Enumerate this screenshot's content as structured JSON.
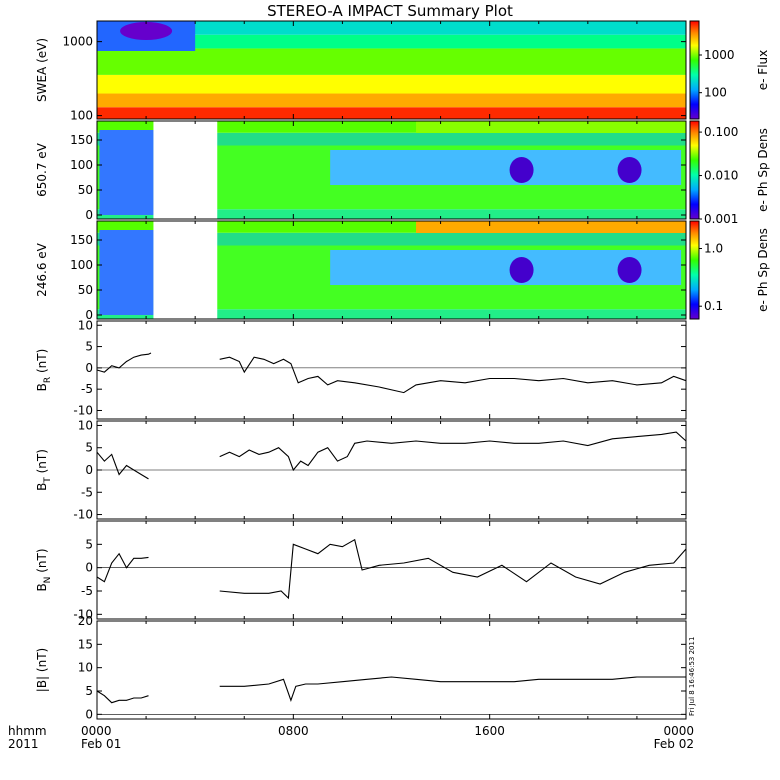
{
  "title": "STEREO-A IMPACT Summary Plot",
  "footer": {
    "left_top": "hhmm",
    "left_bottom": "2011",
    "ticks": [
      {
        "hour": 0,
        "time": "0000",
        "date": "Feb 01"
      },
      {
        "hour": 8,
        "time": "0800",
        "date": ""
      },
      {
        "hour": 16,
        "time": "1600",
        "date": ""
      },
      {
        "hour": 24,
        "time": "0000",
        "date": "Feb 02"
      }
    ]
  },
  "stamp": "Fri Jul  8 16:46:53 2011",
  "colors": {
    "line": "#000000",
    "axis": "#000000",
    "background": "#ffffff"
  },
  "chart_data": [
    {
      "type": "heatmap",
      "id": "swea",
      "ylabel": "SWEA (eV)",
      "yscale": "log",
      "ylim": [
        90,
        1900
      ],
      "yticks": [
        {
          "v": 1000,
          "t": "1000"
        },
        {
          "v": 100,
          "t": "100"
        }
      ],
      "colorbar": {
        "label": "e- Flux",
        "scale": "log",
        "range": [
          20,
          8000
        ],
        "ticks": [
          {
            "v": 1000,
            "t": "1000"
          },
          {
            "v": 100,
            "t": "100"
          }
        ]
      },
      "gaps": []
    },
    {
      "type": "heatmap",
      "id": "pad650",
      "ylabel": "650.7 eV",
      "yscale": "linear",
      "ylim": [
        -8,
        188
      ],
      "yticks": [
        {
          "v": 0,
          "t": "0"
        },
        {
          "v": 50,
          "t": "50"
        },
        {
          "v": 100,
          "t": "100"
        },
        {
          "v": 150,
          "t": "150"
        }
      ],
      "colorbar": {
        "label": "e- Ph Sp Dens",
        "scale": "log",
        "range": [
          0.001,
          0.18
        ],
        "ticks": [
          {
            "v": 0.1,
            "t": "0.100"
          },
          {
            "v": 0.01,
            "t": "0.010"
          },
          {
            "v": 0.001,
            "t": "0.001"
          }
        ]
      },
      "gaps": [
        [
          2.3,
          4.9
        ]
      ]
    },
    {
      "type": "heatmap",
      "id": "pad246",
      "ylabel": "246.6 eV",
      "yscale": "linear",
      "ylim": [
        -8,
        188
      ],
      "yticks": [
        {
          "v": 0,
          "t": "0"
        },
        {
          "v": 50,
          "t": "50"
        },
        {
          "v": 100,
          "t": "100"
        },
        {
          "v": 150,
          "t": "150"
        }
      ],
      "colorbar": {
        "label": "e- Ph Sp Dens",
        "scale": "log",
        "range": [
          0.06,
          3.0
        ],
        "ticks": [
          {
            "v": 1.0,
            "t": "1.0"
          },
          {
            "v": 0.1,
            "t": "0.1"
          }
        ]
      },
      "gaps": [
        [
          2.3,
          4.9
        ]
      ]
    },
    {
      "type": "line",
      "id": "br",
      "ylabel": "BR (nT)",
      "ylabel_main": "B",
      "ylabel_sub": "R",
      "ylabel_unit": " (nT)",
      "ylim": [
        -12,
        11
      ],
      "yticks": [
        -10,
        -5,
        0,
        5,
        10
      ],
      "x": [
        0.0,
        0.3,
        0.6,
        0.9,
        1.2,
        1.5,
        1.8,
        2.1,
        2.2,
        5.0,
        5.4,
        5.8,
        6.0,
        6.4,
        6.8,
        7.2,
        7.6,
        7.9,
        8.2,
        8.6,
        9.0,
        9.4,
        9.8,
        10.5,
        11.5,
        12.5,
        13.0,
        14.0,
        15.0,
        16.0,
        17.0,
        18.0,
        19.0,
        20.0,
        21.0,
        22.0,
        23.0,
        23.5,
        24.0
      ],
      "y": [
        -0.5,
        -1.0,
        0.5,
        0.0,
        1.5,
        2.5,
        3.0,
        3.2,
        3.5,
        2.0,
        2.5,
        1.5,
        -1.0,
        2.5,
        2.0,
        1.0,
        2.0,
        1.0,
        -3.5,
        -2.5,
        -2.0,
        -4.0,
        -3.0,
        -3.5,
        -4.5,
        -5.8,
        -4.0,
        -3.0,
        -3.5,
        -2.5,
        -2.5,
        -3.0,
        -2.5,
        -3.5,
        -3.0,
        -4.0,
        -3.5,
        -2.0,
        -3.0
      ],
      "breaks": [
        [
          2.2,
          5.0
        ]
      ]
    },
    {
      "type": "line",
      "id": "bt",
      "ylabel": "BT (nT)",
      "ylabel_main": "B",
      "ylabel_sub": "T",
      "ylabel_unit": " (nT)",
      "ylim": [
        -11,
        11
      ],
      "yticks": [
        -10,
        -5,
        0,
        5,
        10
      ],
      "x": [
        0.0,
        0.3,
        0.6,
        0.9,
        1.2,
        1.5,
        1.8,
        2.1,
        5.0,
        5.4,
        5.8,
        6.2,
        6.6,
        7.0,
        7.4,
        7.8,
        8.0,
        8.3,
        8.6,
        9.0,
        9.4,
        9.8,
        10.2,
        10.5,
        11.0,
        12.0,
        13.0,
        14.0,
        15.0,
        16.0,
        17.0,
        18.0,
        19.0,
        20.0,
        21.0,
        22.0,
        23.0,
        23.6,
        24.0
      ],
      "y": [
        4.0,
        2.0,
        3.5,
        -1.0,
        1.0,
        0.0,
        -1.0,
        -2.0,
        3.0,
        4.0,
        3.0,
        4.5,
        3.5,
        4.0,
        5.0,
        3.0,
        0.0,
        2.0,
        1.0,
        4.0,
        5.0,
        2.0,
        3.0,
        6.0,
        6.5,
        6.0,
        6.5,
        6.0,
        6.0,
        6.5,
        6.0,
        6.0,
        6.5,
        5.5,
        7.0,
        7.5,
        8.0,
        8.5,
        6.5
      ],
      "breaks": [
        [
          2.1,
          5.0
        ]
      ]
    },
    {
      "type": "line",
      "id": "bn",
      "ylabel": "BN (nT)",
      "ylabel_main": "B",
      "ylabel_sub": "N",
      "ylabel_unit": " (nT)",
      "ylim": [
        -11,
        10
      ],
      "yticks": [
        -10,
        -5,
        0,
        5
      ],
      "x": [
        0.0,
        0.3,
        0.6,
        0.9,
        1.2,
        1.5,
        1.8,
        2.1,
        5.0,
        6.0,
        7.0,
        7.5,
        7.8,
        8.0,
        8.5,
        9.0,
        9.5,
        10.0,
        10.5,
        10.8,
        11.5,
        12.5,
        13.5,
        14.5,
        15.5,
        16.5,
        17.5,
        18.5,
        19.5,
        20.5,
        21.5,
        22.5,
        23.5,
        24.0
      ],
      "y": [
        -2.0,
        -3.0,
        1.0,
        3.0,
        0.0,
        2.0,
        2.0,
        2.2,
        -5.0,
        -5.5,
        -5.5,
        -5.0,
        -6.5,
        5.0,
        4.0,
        3.0,
        5.0,
        4.5,
        6.0,
        -0.5,
        0.5,
        1.0,
        2.0,
        -1.0,
        -2.0,
        0.5,
        -3.0,
        1.0,
        -2.0,
        -3.5,
        -1.0,
        0.5,
        1.0,
        4.0
      ],
      "breaks": [
        [
          2.1,
          5.0
        ]
      ]
    },
    {
      "type": "line",
      "id": "bmag",
      "ylabel": "|B| (nT)",
      "ylabel_main": "|B|",
      "ylabel_sub": "",
      "ylabel_unit": " (nT)",
      "ylim": [
        -1,
        20
      ],
      "yticks": [
        0,
        5,
        10,
        15,
        20
      ],
      "x": [
        0.0,
        0.3,
        0.6,
        0.9,
        1.2,
        1.5,
        1.8,
        2.1,
        5.0,
        6.0,
        7.0,
        7.6,
        7.9,
        8.1,
        8.5,
        9.0,
        10.0,
        11.0,
        12.0,
        13.0,
        14.0,
        15.0,
        16.0,
        17.0,
        18.0,
        19.0,
        20.0,
        21.0,
        22.0,
        23.0,
        24.0
      ],
      "y": [
        5.0,
        4.0,
        2.5,
        3.0,
        3.0,
        3.5,
        3.5,
        4.0,
        6.0,
        6.0,
        6.5,
        7.5,
        3.0,
        6.0,
        6.5,
        6.5,
        7.0,
        7.5,
        8.0,
        7.5,
        7.0,
        7.0,
        7.0,
        7.0,
        7.5,
        7.5,
        7.5,
        7.5,
        8.0,
        8.0,
        8.0
      ],
      "breaks": [
        [
          2.1,
          5.0
        ]
      ]
    }
  ]
}
